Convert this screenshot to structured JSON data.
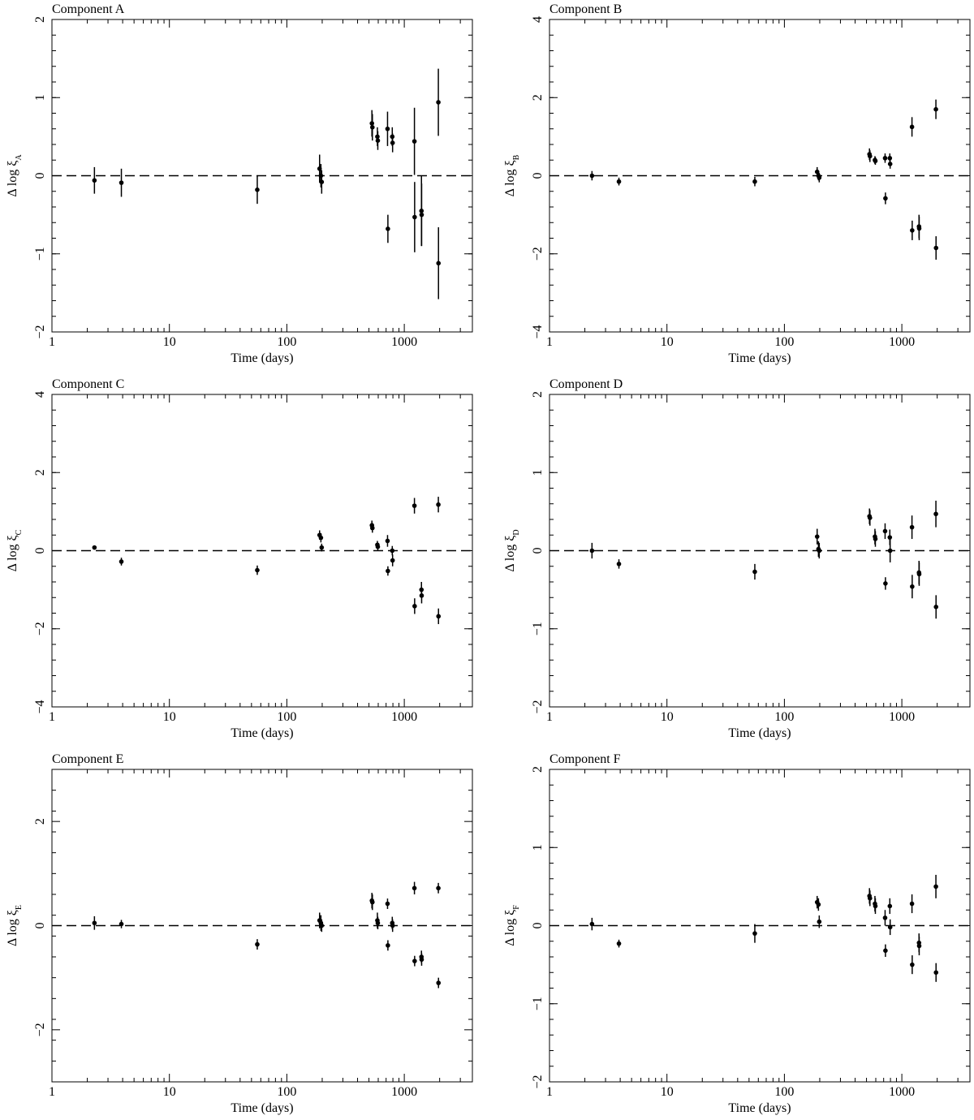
{
  "chart_data": [
    {
      "type": "scatter",
      "title": "Component A",
      "xlabel": "Time (days)",
      "ylabel": "Δ log ξ",
      "ylabel_subscript": "A",
      "x": [
        2.3,
        3.9,
        56,
        190,
        195,
        198,
        530,
        535,
        590,
        595,
        720,
        725,
        790,
        795,
        1220,
        1225,
        1400,
        1405,
        1950,
        1955
      ],
      "values": [
        -0.06,
        -0.09,
        -0.18,
        0.09,
        0.0,
        -0.08,
        0.67,
        0.62,
        0.5,
        0.45,
        0.6,
        -0.68,
        0.5,
        0.42,
        0.44,
        -0.53,
        -0.45,
        -0.5,
        0.94,
        -1.12
      ],
      "errors": [
        0.17,
        0.18,
        0.18,
        0.18,
        0.15,
        0.15,
        0.17,
        0.17,
        0.12,
        0.12,
        0.22,
        0.18,
        0.12,
        0.12,
        0.43,
        0.45,
        0.45,
        0.4,
        0.43,
        0.46
      ],
      "xscale": "log",
      "xlim": [
        1,
        3800
      ],
      "xticks": [
        1,
        10,
        100,
        1000
      ],
      "ylim": [
        -2,
        2
      ],
      "yticks": [
        {
          "value": -2,
          "label": "−2"
        },
        {
          "value": -1,
          "label": "−1"
        },
        0,
        1,
        2
      ],
      "hline": 0,
      "color": "#000000"
    },
    {
      "type": "scatter",
      "title": "Component B",
      "xlabel": "Time (days)",
      "ylabel": "Δ log ξ",
      "ylabel_subscript": "B",
      "x": [
        2.3,
        3.9,
        56,
        190,
        195,
        198,
        530,
        535,
        590,
        595,
        720,
        725,
        790,
        795,
        1220,
        1225,
        1400,
        1405,
        1950,
        1955
      ],
      "values": [
        0.0,
        -0.15,
        -0.15,
        0.1,
        0.0,
        -0.05,
        0.55,
        0.5,
        0.4,
        0.38,
        0.45,
        -0.58,
        0.45,
        0.3,
        1.25,
        -1.4,
        -1.3,
        -1.35,
        1.7,
        -1.85
      ],
      "errors": [
        0.12,
        0.1,
        0.12,
        0.12,
        0.12,
        0.12,
        0.15,
        0.15,
        0.1,
        0.1,
        0.12,
        0.15,
        0.12,
        0.12,
        0.25,
        0.25,
        0.3,
        0.3,
        0.25,
        0.3
      ],
      "xscale": "log",
      "xlim": [
        1,
        3800
      ],
      "xticks": [
        1,
        10,
        100,
        1000
      ],
      "ylim": [
        -4,
        4
      ],
      "yticks": [
        {
          "value": -4,
          "label": "−4"
        },
        {
          "value": -2,
          "label": "−2"
        },
        0,
        2,
        4
      ],
      "hline": 0,
      "color": "#000000"
    },
    {
      "type": "scatter",
      "title": "Component C",
      "xlabel": "Time (days)",
      "ylabel": "Δ log ξ",
      "ylabel_subscript": "C",
      "x": [
        2.3,
        3.9,
        56,
        190,
        195,
        198,
        530,
        535,
        590,
        595,
        720,
        725,
        790,
        795,
        1220,
        1225,
        1400,
        1405,
        1950,
        1955
      ],
      "values": [
        0.08,
        -0.28,
        -0.5,
        0.4,
        0.33,
        0.08,
        0.65,
        0.58,
        0.15,
        0.1,
        0.25,
        -0.52,
        0.0,
        -0.25,
        1.15,
        -1.42,
        -1.0,
        -1.15,
        1.18,
        -1.68
      ],
      "errors": [
        0.05,
        0.1,
        0.12,
        0.12,
        0.12,
        0.1,
        0.12,
        0.12,
        0.1,
        0.1,
        0.15,
        0.12,
        0.12,
        0.15,
        0.2,
        0.2,
        0.2,
        0.2,
        0.2,
        0.2
      ],
      "xscale": "log",
      "xlim": [
        1,
        3800
      ],
      "xticks": [
        1,
        10,
        100,
        1000
      ],
      "ylim": [
        -4,
        4
      ],
      "yticks": [
        {
          "value": -4,
          "label": "−4"
        },
        {
          "value": -2,
          "label": "−2"
        },
        0,
        2,
        4
      ],
      "hline": 0,
      "color": "#000000"
    },
    {
      "type": "scatter",
      "title": "Component D",
      "xlabel": "Time (days)",
      "ylabel": "Δ log ξ",
      "ylabel_subscript": "D",
      "x": [
        2.3,
        3.9,
        56,
        190,
        195,
        198,
        530,
        535,
        590,
        595,
        720,
        725,
        790,
        795,
        1220,
        1225,
        1400,
        1405,
        1950,
        1955
      ],
      "values": [
        0.0,
        -0.17,
        -0.27,
        0.18,
        0.02,
        0.0,
        0.44,
        0.42,
        0.18,
        0.15,
        0.25,
        -0.42,
        0.17,
        0.0,
        0.3,
        -0.46,
        -0.28,
        -0.3,
        0.47,
        -0.72
      ],
      "errors": [
        0.1,
        0.06,
        0.1,
        0.1,
        0.1,
        0.1,
        0.1,
        0.1,
        0.1,
        0.1,
        0.1,
        0.08,
        0.1,
        0.15,
        0.15,
        0.15,
        0.15,
        0.15,
        0.17,
        0.15
      ],
      "xscale": "log",
      "xlim": [
        1,
        3800
      ],
      "xticks": [
        1,
        10,
        100,
        1000
      ],
      "ylim": [
        -2,
        2
      ],
      "yticks": [
        {
          "value": -2,
          "label": "−2"
        },
        {
          "value": -1,
          "label": "−1"
        },
        0,
        1,
        2
      ],
      "hline": 0,
      "color": "#000000"
    },
    {
      "type": "scatter",
      "title": "Component E",
      "xlabel": "Time (days)",
      "ylabel": "Δ log ξ",
      "ylabel_subscript": "E",
      "x": [
        2.3,
        3.9,
        56,
        190,
        195,
        198,
        530,
        535,
        590,
        595,
        720,
        725,
        790,
        795,
        1220,
        1225,
        1400,
        1405,
        1950,
        1955
      ],
      "values": [
        0.05,
        0.03,
        -0.36,
        0.1,
        0.05,
        0.0,
        0.48,
        0.45,
        0.1,
        0.05,
        0.42,
        -0.38,
        0.05,
        0.0,
        0.72,
        -0.68,
        -0.6,
        -0.65,
        0.72,
        -1.1
      ],
      "errors": [
        0.13,
        0.08,
        0.1,
        0.15,
        0.15,
        0.12,
        0.15,
        0.15,
        0.15,
        0.12,
        0.1,
        0.1,
        0.12,
        0.12,
        0.12,
        0.1,
        0.12,
        0.12,
        0.1,
        0.1
      ],
      "xscale": "log",
      "xlim": [
        1,
        3800
      ],
      "xticks": [
        1,
        10,
        100,
        1000
      ],
      "ylim": [
        -3,
        3
      ],
      "yticks": [
        {
          "value": -2,
          "label": "−2"
        },
        0,
        2
      ],
      "hline": 0,
      "color": "#000000"
    },
    {
      "type": "scatter",
      "title": "Component F",
      "xlabel": "Time (days)",
      "ylabel": "Δ log ξ",
      "ylabel_subscript": "F",
      "x": [
        2.3,
        3.9,
        56,
        190,
        195,
        198,
        530,
        535,
        590,
        595,
        720,
        725,
        790,
        795,
        1220,
        1225,
        1400,
        1405,
        1950,
        1955
      ],
      "values": [
        0.02,
        -0.23,
        -0.1,
        0.3,
        0.27,
        0.05,
        0.38,
        0.35,
        0.28,
        0.25,
        0.1,
        -0.32,
        0.25,
        -0.02,
        0.28,
        -0.5,
        -0.22,
        -0.26,
        0.5,
        -0.6
      ],
      "errors": [
        0.08,
        0.05,
        0.12,
        0.08,
        0.08,
        0.08,
        0.1,
        0.1,
        0.1,
        0.1,
        0.1,
        0.08,
        0.1,
        0.1,
        0.12,
        0.12,
        0.12,
        0.12,
        0.15,
        0.12
      ],
      "xscale": "log",
      "xlim": [
        1,
        3800
      ],
      "xticks": [
        1,
        10,
        100,
        1000
      ],
      "ylim": [
        -2,
        2
      ],
      "yticks": [
        {
          "value": -2,
          "label": "−2"
        },
        {
          "value": -1,
          "label": "−1"
        },
        0,
        1,
        2
      ],
      "hline": 0,
      "color": "#000000"
    }
  ]
}
